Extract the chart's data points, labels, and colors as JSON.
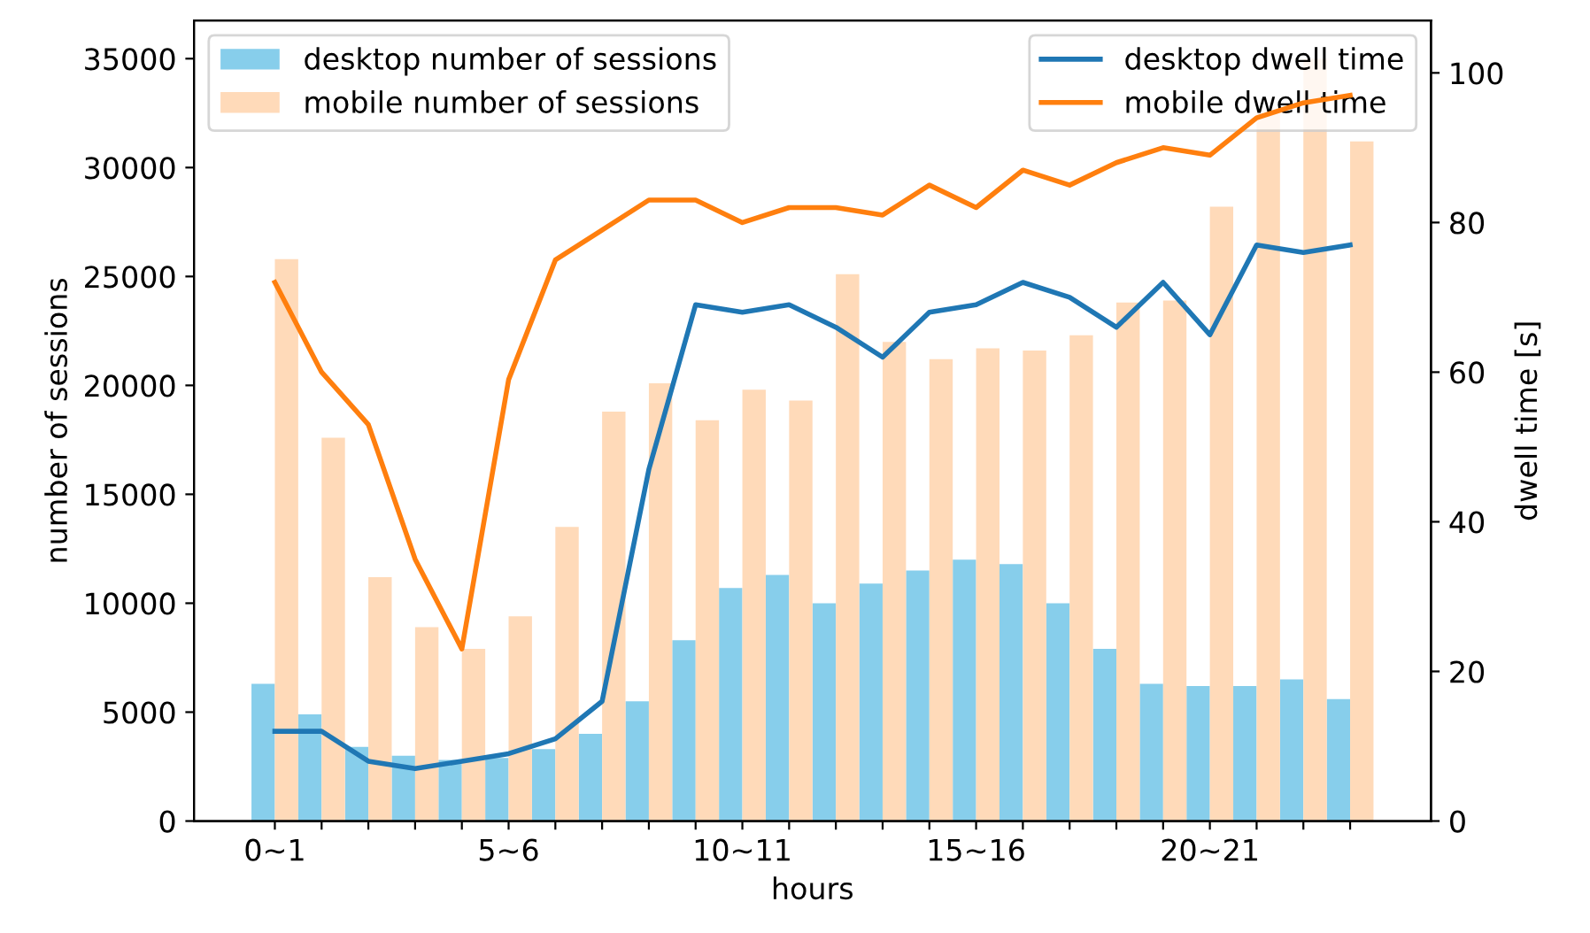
{
  "chart_data": {
    "type": "bar",
    "xlabel": "hours",
    "ylabel": "number of sessions",
    "y2label": "dwell time [s]",
    "categories": [
      "0~1",
      null,
      null,
      null,
      null,
      "5~6",
      null,
      null,
      null,
      null,
      "10~11",
      null,
      null,
      null,
      null,
      "15~16",
      null,
      null,
      null,
      null,
      "20~21",
      null,
      null,
      null
    ],
    "series": [
      {
        "name": "desktop number of sessions",
        "color": "#87ceeb",
        "values": [
          6300,
          4900,
          3400,
          3000,
          2800,
          2900,
          3300,
          4000,
          5500,
          8300,
          10700,
          11300,
          10000,
          10900,
          11500,
          12000,
          11800,
          10000,
          7900,
          6300,
          6200,
          6200,
          6500,
          5600
        ]
      },
      {
        "name": "mobile number of sessions",
        "color": "#ffdab9",
        "values": [
          25800,
          17600,
          11200,
          8900,
          7900,
          9400,
          13500,
          18800,
          20100,
          18400,
          19800,
          19300,
          25100,
          22000,
          21200,
          21700,
          21600,
          22300,
          23800,
          23900,
          28200,
          32500,
          35000,
          31200
        ]
      },
      {
        "name": "desktop dwell time",
        "type": "line",
        "axis": "y2",
        "color": "#1f77b4",
        "values": [
          12,
          12,
          8,
          7,
          8,
          9,
          11,
          16,
          47,
          69,
          68,
          69,
          66,
          62,
          68,
          69,
          72,
          70,
          66,
          72,
          65,
          77,
          76,
          77
        ]
      },
      {
        "name": "mobile dwell time",
        "type": "line",
        "axis": "y2",
        "color": "#ff7f0e",
        "values": [
          72,
          60,
          53,
          35,
          23,
          59,
          75,
          79,
          83,
          83,
          80,
          82,
          82,
          81,
          85,
          82,
          87,
          85,
          88,
          90,
          89,
          94,
          96,
          97
        ]
      }
    ],
    "ylim": [
      0,
      36750
    ],
    "yticks": [
      0,
      5000,
      10000,
      15000,
      20000,
      25000,
      30000,
      35000
    ],
    "y2lim": [
      0,
      107
    ],
    "y2ticks": [
      0,
      20,
      40,
      60,
      80,
      100
    ],
    "legend": "top",
    "grid": false
  }
}
